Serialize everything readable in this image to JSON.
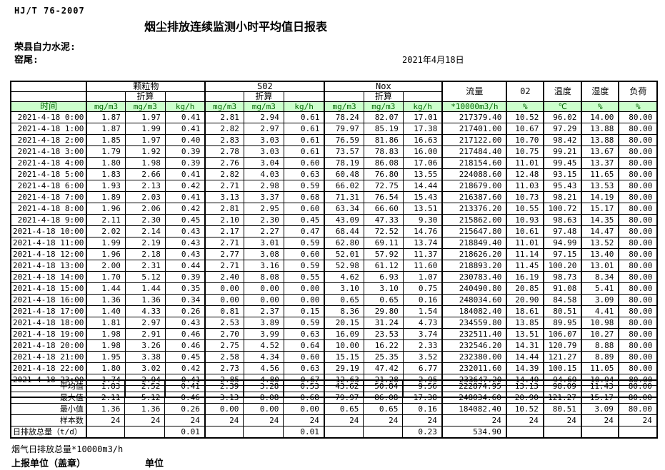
{
  "header": {
    "standard_code": "HJ/T  76-2007",
    "title": "烟尘排放连续监测小时平均值日报表",
    "company": "荣县自力水泥:",
    "location": "窑尾:",
    "date": "2021年4月18日"
  },
  "table": {
    "group_row": [
      "",
      "颗粒物",
      "S02",
      "Nox",
      "流量",
      "02",
      "温度",
      "湿度",
      "负荷"
    ],
    "converted_label": "折算",
    "time_label": "时间",
    "unit_row": [
      "mg/m3",
      "mg/m3",
      "kg/h",
      "mg/m3",
      "mg/m3",
      "kg/h",
      "mg/m3",
      "mg/m3",
      "kg/h",
      "*10000m3/h",
      "%",
      "℃",
      "%",
      "%"
    ],
    "rows": [
      {
        "time": "2021-4-18 0:00",
        "values": [
          "1.87",
          "1.97",
          "0.41",
          "2.81",
          "2.94",
          "0.61",
          "78.24",
          "82.07",
          "17.01",
          "217379.40",
          "10.52",
          "96.02",
          "14.00",
          "80.00"
        ]
      },
      {
        "time": "2021-4-18 1:00",
        "values": [
          "1.87",
          "1.99",
          "0.41",
          "2.82",
          "2.97",
          "0.61",
          "79.97",
          "85.19",
          "17.38",
          "217401.00",
          "10.67",
          "97.29",
          "13.88",
          "80.00"
        ]
      },
      {
        "time": "2021-4-18 2:00",
        "values": [
          "1.85",
          "1.97",
          "0.40",
          "2.83",
          "3.03",
          "0.61",
          "76.59",
          "81.86",
          "16.63",
          "217122.00",
          "10.70",
          "98.42",
          "13.88",
          "80.00"
        ]
      },
      {
        "time": "2021-4-18 3:00",
        "values": [
          "1.79",
          "1.92",
          "0.39",
          "2.78",
          "3.03",
          "0.61",
          "73.57",
          "78.83",
          "16.00",
          "217484.40",
          "10.75",
          "99.21",
          "13.67",
          "80.00"
        ]
      },
      {
        "time": "2021-4-18 4:00",
        "values": [
          "1.80",
          "1.98",
          "0.39",
          "2.76",
          "3.04",
          "0.60",
          "78.19",
          "86.08",
          "17.06",
          "218154.60",
          "11.01",
          "99.45",
          "13.37",
          "80.00"
        ]
      },
      {
        "time": "2021-4-18 5:00",
        "values": [
          "1.83",
          "2.66",
          "0.41",
          "2.82",
          "4.03",
          "0.63",
          "60.48",
          "76.80",
          "13.55",
          "224088.60",
          "12.48",
          "93.15",
          "11.65",
          "80.00"
        ]
      },
      {
        "time": "2021-4-18 6:00",
        "values": [
          "1.93",
          "2.13",
          "0.42",
          "2.71",
          "2.98",
          "0.59",
          "66.02",
          "72.75",
          "14.44",
          "218679.00",
          "11.03",
          "95.43",
          "13.53",
          "80.00"
        ]
      },
      {
        "time": "2021-4-18 7:00",
        "values": [
          "1.89",
          "2.03",
          "0.41",
          "3.13",
          "3.37",
          "0.68",
          "71.31",
          "76.54",
          "15.43",
          "216387.60",
          "10.73",
          "98.21",
          "14.19",
          "80.00"
        ]
      },
      {
        "time": "2021-4-18 8:00",
        "values": [
          "1.96",
          "2.06",
          "0.42",
          "2.81",
          "2.95",
          "0.60",
          "63.34",
          "66.60",
          "13.51",
          "213376.20",
          "10.55",
          "100.72",
          "15.17",
          "80.00"
        ]
      },
      {
        "time": "2021-4-18 9:00",
        "values": [
          "2.11",
          "2.30",
          "0.45",
          "2.10",
          "2.30",
          "0.45",
          "43.09",
          "47.33",
          "9.30",
          "215862.00",
          "10.93",
          "98.63",
          "14.35",
          "80.00"
        ]
      },
      {
        "time": "2021-4-18 10:00",
        "values": [
          "2.02",
          "2.14",
          "0.43",
          "2.17",
          "2.27",
          "0.47",
          "68.44",
          "72.52",
          "14.76",
          "215647.80",
          "10.61",
          "97.48",
          "14.47",
          "80.00"
        ]
      },
      {
        "time": "2021-4-18 11:00",
        "values": [
          "1.99",
          "2.19",
          "0.43",
          "2.71",
          "3.01",
          "0.59",
          "62.80",
          "69.11",
          "13.74",
          "218849.40",
          "11.01",
          "94.99",
          "13.52",
          "80.00"
        ]
      },
      {
        "time": "2021-4-18 12:00",
        "values": [
          "1.96",
          "2.18",
          "0.43",
          "2.77",
          "3.08",
          "0.60",
          "52.01",
          "57.92",
          "11.37",
          "218626.20",
          "11.14",
          "97.15",
          "13.40",
          "80.00"
        ]
      },
      {
        "time": "2021-4-18 13:00",
        "values": [
          "2.00",
          "2.31",
          "0.44",
          "2.71",
          "3.16",
          "0.59",
          "52.98",
          "61.12",
          "11.60",
          "218893.20",
          "11.45",
          "100.20",
          "13.01",
          "80.00"
        ]
      },
      {
        "time": "2021-4-18 14:00",
        "values": [
          "1.70",
          "5.12",
          "0.39",
          "2.40",
          "8.08",
          "0.55",
          "4.62",
          "6.93",
          "1.07",
          "230783.40",
          "16.19",
          "98.73",
          "8.34",
          "80.00"
        ]
      },
      {
        "time": "2021-4-18 15:00",
        "values": [
          "1.44",
          "1.44",
          "0.35",
          "0.00",
          "0.00",
          "0.00",
          "3.10",
          "3.10",
          "0.75",
          "240490.80",
          "20.85",
          "91.08",
          "5.41",
          "80.00"
        ]
      },
      {
        "time": "2021-4-18 16:00",
        "values": [
          "1.36",
          "1.36",
          "0.34",
          "0.00",
          "0.00",
          "0.00",
          "0.65",
          "0.65",
          "0.16",
          "248034.60",
          "20.90",
          "84.58",
          "3.09",
          "80.00"
        ]
      },
      {
        "time": "2021-4-18 17:00",
        "values": [
          "1.40",
          "4.33",
          "0.26",
          "0.81",
          "2.37",
          "0.15",
          "8.36",
          "29.80",
          "1.54",
          "184082.40",
          "18.61",
          "80.51",
          "4.41",
          "80.00"
        ]
      },
      {
        "time": "2021-4-18 18:00",
        "values": [
          "1.81",
          "2.97",
          "0.43",
          "2.53",
          "3.89",
          "0.59",
          "20.15",
          "31.24",
          "4.73",
          "234559.80",
          "13.85",
          "89.95",
          "10.98",
          "80.00"
        ]
      },
      {
        "time": "2021-4-18 19:00",
        "values": [
          "1.98",
          "2.91",
          "0.46",
          "2.70",
          "3.99",
          "0.63",
          "16.09",
          "23.53",
          "3.74",
          "232511.40",
          "13.51",
          "106.07",
          "10.27",
          "80.00"
        ]
      },
      {
        "time": "2021-4-18 20:00",
        "values": [
          "1.98",
          "3.26",
          "0.46",
          "2.75",
          "4.52",
          "0.64",
          "10.00",
          "16.22",
          "2.33",
          "232546.20",
          "14.31",
          "120.79",
          "8.88",
          "80.00"
        ]
      },
      {
        "time": "2021-4-18 21:00",
        "values": [
          "1.95",
          "3.38",
          "0.45",
          "2.58",
          "4.34",
          "0.60",
          "15.15",
          "25.35",
          "3.52",
          "232380.00",
          "14.44",
          "121.27",
          "8.89",
          "80.00"
        ]
      },
      {
        "time": "2021-4-18 22:00",
        "values": [
          "1.80",
          "3.02",
          "0.42",
          "2.73",
          "4.56",
          "0.63",
          "29.19",
          "47.42",
          "6.77",
          "232011.60",
          "14.39",
          "100.15",
          "11.05",
          "80.00"
        ]
      },
      {
        "time": "2021-4-18 23:00",
        "values": [
          "1.74",
          "2.94",
          "0.41",
          "2.85",
          "4.80",
          "0.67",
          "12.63",
          "21.28",
          "2.95",
          "233647.20",
          "14.49",
          "94.69",
          "10.94",
          "80.00"
        ]
      }
    ],
    "summary": [
      {
        "label": "平均值",
        "values": [
          "1.83",
          "2.52",
          "0.41",
          "2.39",
          "3.28",
          "0.53",
          "43.62",
          "50.84",
          "9.56",
          "222874.95",
          "13.13",
          "98.09",
          "11.43",
          "80.00"
        ]
      },
      {
        "label": "最大值",
        "values": [
          "2.11",
          "5.12",
          "0.46",
          "3.13",
          "8.08",
          "0.68",
          "79.97",
          "86.08",
          "17.38",
          "248034.60",
          "20.90",
          "121.27",
          "15.17",
          "80.00"
        ]
      },
      {
        "label": "最小值",
        "values": [
          "1.36",
          "1.36",
          "0.26",
          "0.00",
          "0.00",
          "0.00",
          "0.65",
          "0.65",
          "0.16",
          "184082.40",
          "10.52",
          "80.51",
          "3.09",
          "80.00"
        ]
      },
      {
        "label": "样本数",
        "values": [
          "24",
          "24",
          "24",
          "24",
          "24",
          "24",
          "24",
          "24",
          "24",
          "24",
          "24",
          "24",
          "24",
          "24"
        ]
      },
      {
        "label": "日排放总量（t/d）",
        "values": [
          "",
          "",
          "0.01",
          "",
          "",
          "0.01",
          "",
          "",
          "0.23",
          "534.90",
          "",
          "",
          "",
          ""
        ]
      }
    ]
  },
  "footer": {
    "flow_total_note": "烟气日排放总量*10000m3/h",
    "report_unit_label": "上报单位（盖章）",
    "unit_label": "单位"
  },
  "colors": {
    "header_green_bg": "#ccffcc",
    "header_green_text": "#006600",
    "border": "#000000"
  }
}
